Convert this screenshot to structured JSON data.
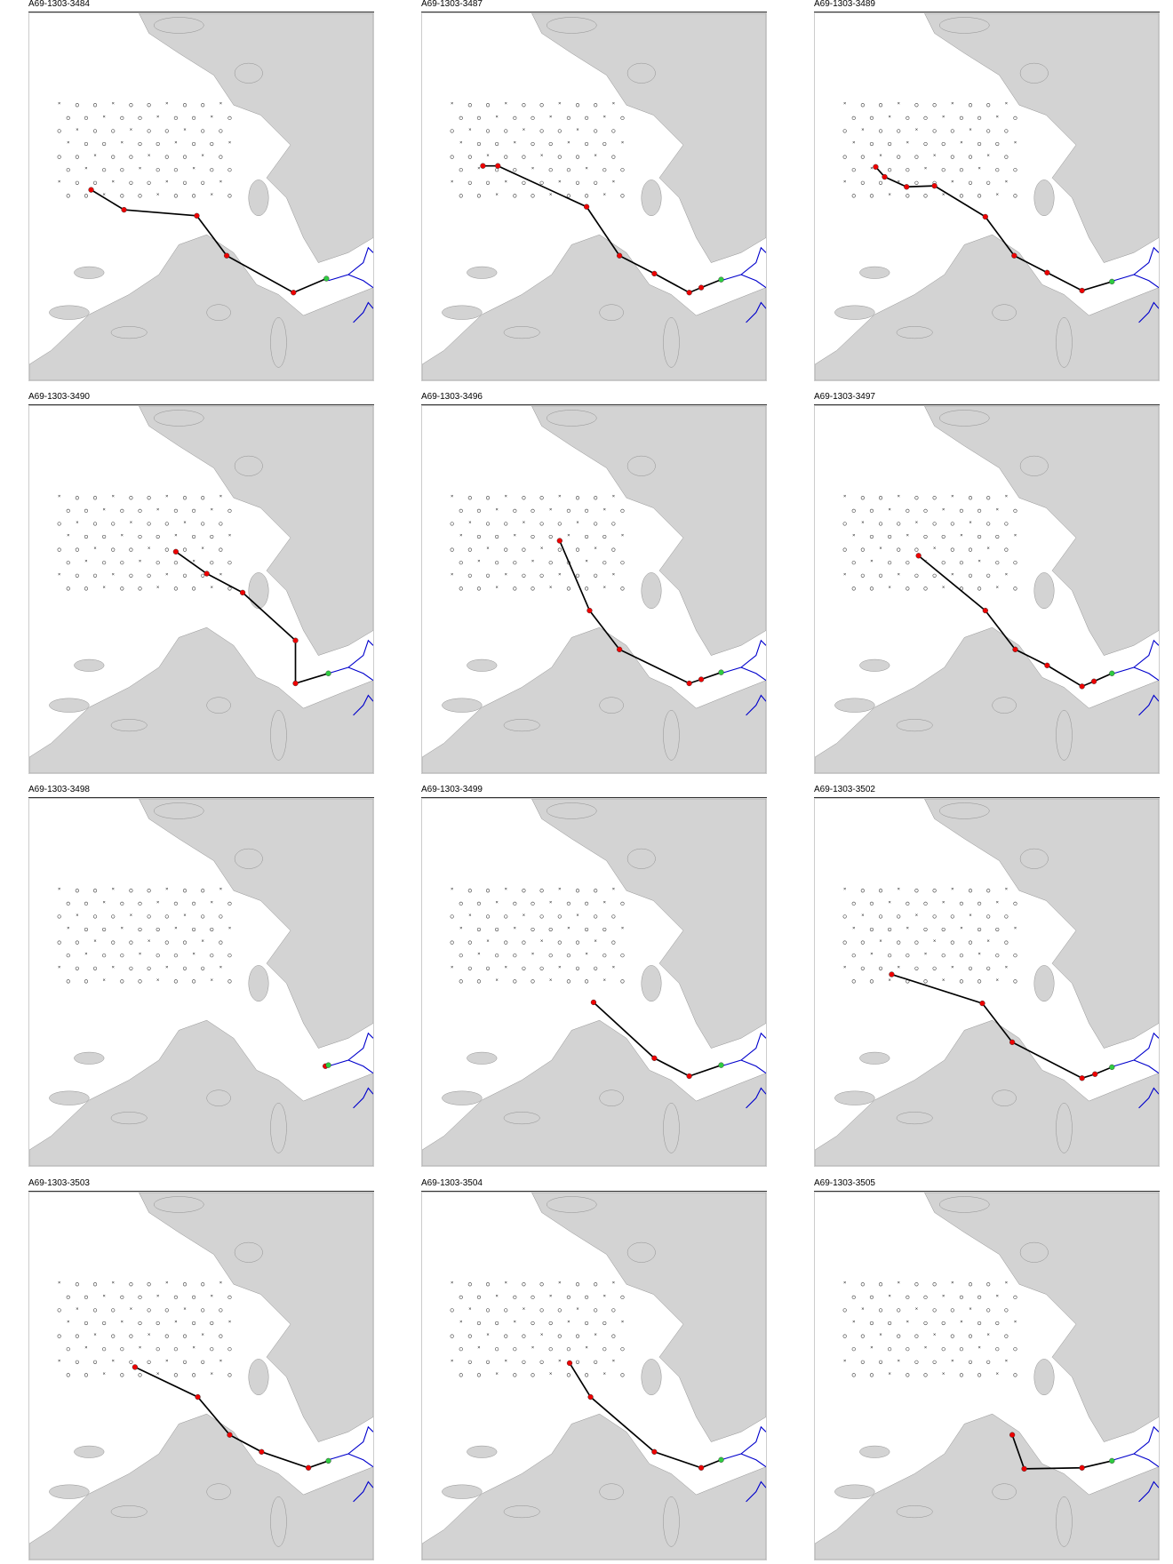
{
  "panels": [
    {
      "title": "A69-1303-3484"
    },
    {
      "title": "A69-1303-3487"
    },
    {
      "title": "A69-1303-3489"
    },
    {
      "title": "A69-1303-3490"
    },
    {
      "title": "A69-1303-3496"
    },
    {
      "title": "A69-1303-3497"
    },
    {
      "title": "A69-1303-3498"
    },
    {
      "title": "A69-1303-3499"
    },
    {
      "title": "A69-1303-3502"
    },
    {
      "title": "A69-1303-3503"
    },
    {
      "title": "A69-1303-3504"
    },
    {
      "title": "A69-1303-3505"
    }
  ]
}
